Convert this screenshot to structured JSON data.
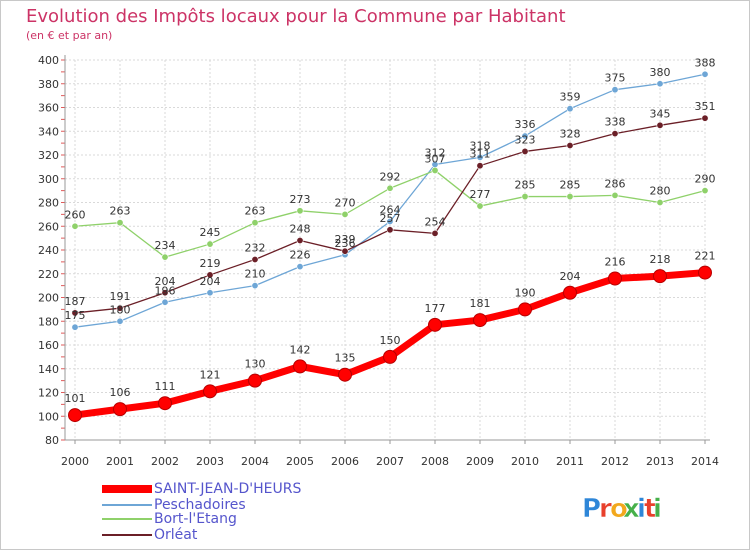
{
  "chart_data": {
    "type": "line",
    "title": "Evolution des Impôts locaux pour la Commune par Habitant",
    "subtitle": "(en € et par an)",
    "xlabel": "",
    "ylabel": "",
    "ylim": [
      80,
      400
    ],
    "y_ticks": [
      80,
      100,
      120,
      140,
      160,
      180,
      200,
      220,
      240,
      260,
      280,
      300,
      320,
      340,
      360,
      380,
      400
    ],
    "grid": true,
    "legend_position": "bottom-left",
    "categories": [
      "2000",
      "2001",
      "2002",
      "2003",
      "2004",
      "2005",
      "2006",
      "2007",
      "2008",
      "2009",
      "2010",
      "2011",
      "2012",
      "2013",
      "2014"
    ],
    "series": [
      {
        "name": "SAINT-JEAN-D'HEURS",
        "color": "#ff0000",
        "values": [
          101,
          106,
          111,
          121,
          130,
          142,
          135,
          150,
          177,
          181,
          190,
          204,
          216,
          218,
          221
        ]
      },
      {
        "name": "Peschadoires",
        "color": "#6ea6d6",
        "values": [
          175,
          180,
          196,
          204,
          210,
          226,
          236,
          264,
          312,
          318,
          336,
          359,
          375,
          380,
          388
        ]
      },
      {
        "name": "Bort-l'Etang",
        "color": "#8fd16a",
        "values": [
          260,
          263,
          234,
          245,
          263,
          273,
          270,
          292,
          307,
          277,
          285,
          285,
          286,
          280,
          290
        ]
      },
      {
        "name": "Orléat",
        "color": "#6b1f27",
        "values": [
          187,
          191,
          204,
          219,
          232,
          248,
          239,
          257,
          254,
          311,
          323,
          328,
          338,
          345,
          351
        ]
      }
    ]
  },
  "branding": {
    "logo_text": "Proxiti",
    "logo_letters": [
      "P",
      "r",
      "o",
      "x",
      "i",
      "t",
      "i"
    ],
    "logo_colors": [
      "#2e86d8",
      "#e8402c",
      "#f2a81d",
      "#46b04a",
      "#2e86d8",
      "#e8402c",
      "#46b04a"
    ]
  }
}
